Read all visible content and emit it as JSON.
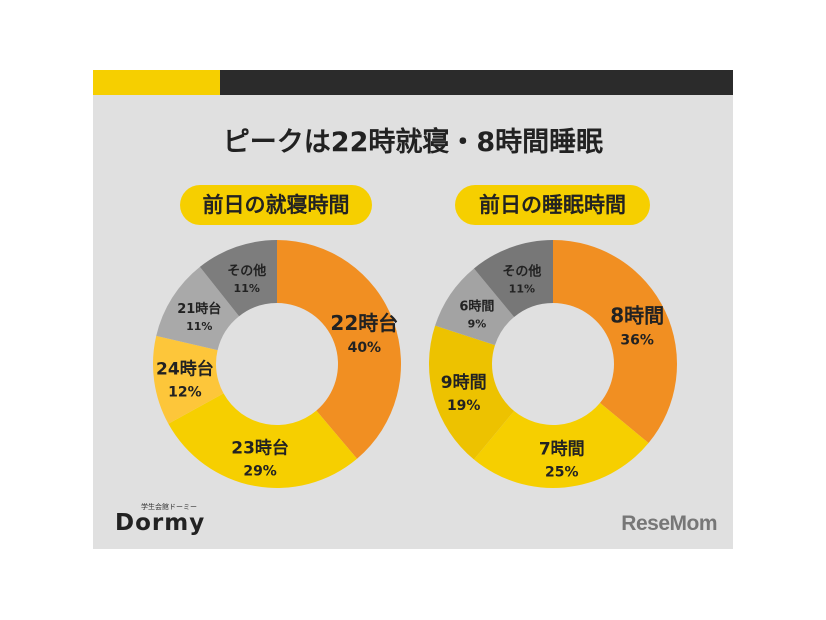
{
  "title": "ピークは22時就寝・8時間睡眠",
  "logos": {
    "dormy": "Dormy",
    "dormy_sub": "学生会館ドーミー",
    "resemom": "ReseMom"
  },
  "chart_data": [
    {
      "type": "pie",
      "donut": true,
      "title": "前日の就寝時間",
      "categories": [
        "22時台",
        "23時台",
        "24時台",
        "21時台",
        "その他"
      ],
      "values": [
        40,
        29,
        12,
        11,
        11
      ],
      "labels": [
        "40%",
        "29%",
        "12%",
        "11%",
        "11%"
      ],
      "colors": [
        "#f18f22",
        "#f6cf00",
        "#fdc63a",
        "#a9a9a9",
        "#7d7d7d"
      ]
    },
    {
      "type": "pie",
      "donut": true,
      "title": "前日の睡眠時間",
      "categories": [
        "8時間",
        "7時間",
        "9時間",
        "6時間",
        "その他"
      ],
      "values": [
        36,
        25,
        19,
        9,
        11
      ],
      "labels": [
        "36%",
        "25%",
        "19%",
        "9%",
        "11%"
      ],
      "colors": [
        "#f18f22",
        "#f6cf00",
        "#edc200",
        "#a3a3a3",
        "#777777"
      ]
    }
  ]
}
